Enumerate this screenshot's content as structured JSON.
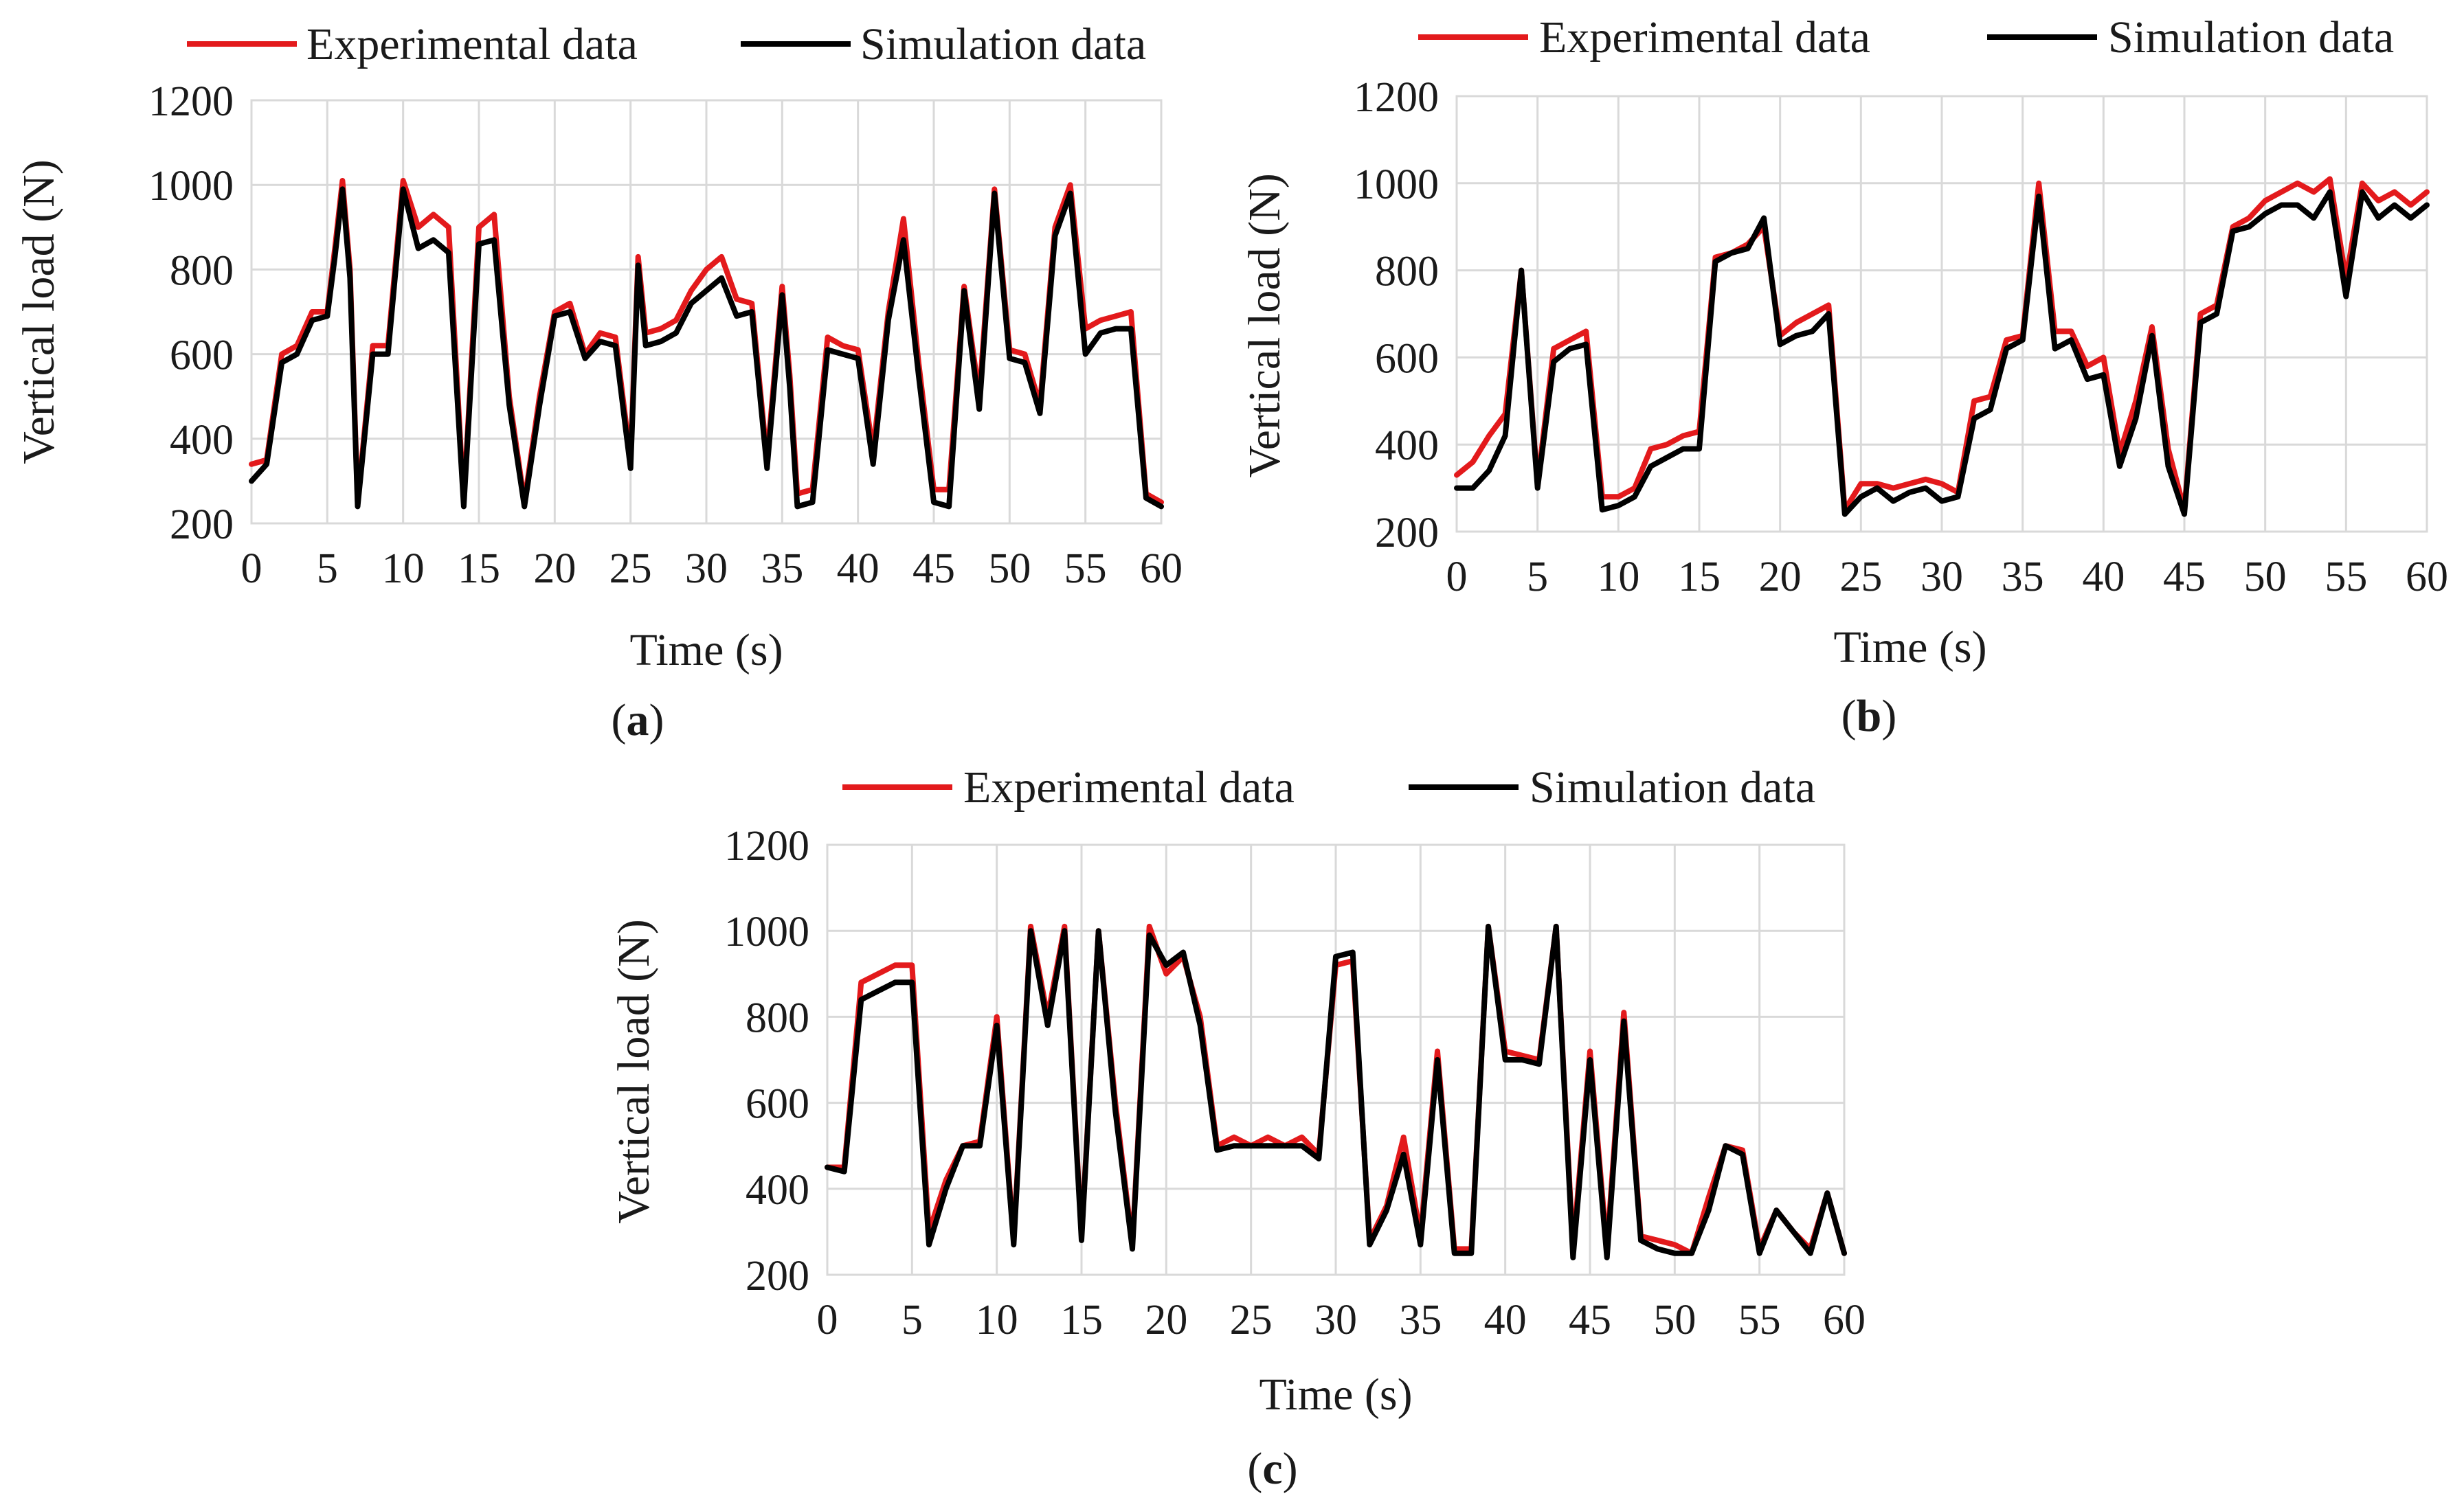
{
  "chart_data": [
    {
      "type": "line",
      "panel_label": "a",
      "xlabel": "Time (s)",
      "ylabel": "Vertical load (N)",
      "xlim": [
        0,
        60
      ],
      "ylim": [
        200,
        1200
      ],
      "xticks": [
        "0",
        "5",
        "10",
        "15",
        "20",
        "25",
        "30",
        "35",
        "40",
        "45",
        "50",
        "55",
        "60"
      ],
      "yticks": [
        "200",
        "400",
        "600",
        "800",
        "1000",
        "1200"
      ],
      "grid": true,
      "legend_position": "top",
      "series": [
        {
          "name": "Experimental data",
          "color": "#e31a1c",
          "x": [
            0,
            1,
            2,
            3,
            4,
            5,
            5.5,
            6,
            6.5,
            7,
            8,
            9,
            10,
            11,
            12,
            13,
            14,
            15,
            16,
            17,
            18,
            19,
            20,
            21,
            22,
            23,
            24,
            25,
            25.5,
            26,
            27,
            28,
            29,
            30,
            31,
            32,
            33,
            34,
            35,
            35.5,
            36,
            37,
            38,
            39,
            40,
            41,
            42,
            43,
            44,
            45,
            46,
            47,
            48,
            49,
            50,
            51,
            52,
            53,
            54,
            55,
            56,
            57,
            58,
            59,
            60
          ],
          "y": [
            340,
            350,
            600,
            620,
            700,
            700,
            850,
            1010,
            800,
            250,
            620,
            620,
            1010,
            900,
            930,
            900,
            250,
            900,
            930,
            500,
            250,
            500,
            700,
            720,
            600,
            650,
            640,
            350,
            830,
            650,
            660,
            680,
            750,
            800,
            830,
            730,
            720,
            350,
            760,
            550,
            270,
            280,
            640,
            620,
            610,
            370,
            700,
            920,
            580,
            280,
            280,
            760,
            500,
            990,
            610,
            600,
            480,
            900,
            1000,
            660,
            680,
            690,
            700,
            270,
            250
          ]
        },
        {
          "name": "Simulation data",
          "color": "#000000",
          "x": [
            0,
            1,
            2,
            3,
            4,
            5,
            5.5,
            6,
            6.5,
            7,
            8,
            9,
            10,
            11,
            12,
            13,
            14,
            15,
            16,
            17,
            18,
            19,
            20,
            21,
            22,
            23,
            24,
            25,
            25.5,
            26,
            27,
            28,
            29,
            30,
            31,
            32,
            33,
            34,
            35,
            35.5,
            36,
            37,
            38,
            39,
            40,
            41,
            42,
            43,
            44,
            45,
            46,
            47,
            48,
            49,
            50,
            51,
            52,
            53,
            54,
            55,
            56,
            57,
            58,
            59,
            60
          ],
          "y": [
            300,
            340,
            580,
            600,
            680,
            690,
            830,
            990,
            780,
            240,
            600,
            600,
            990,
            850,
            870,
            840,
            240,
            860,
            870,
            480,
            240,
            480,
            690,
            700,
            590,
            630,
            620,
            330,
            810,
            620,
            630,
            650,
            720,
            750,
            780,
            690,
            700,
            330,
            740,
            520,
            240,
            250,
            610,
            600,
            590,
            340,
            680,
            870,
            550,
            250,
            240,
            750,
            470,
            980,
            590,
            580,
            460,
            880,
            980,
            600,
            650,
            660,
            660,
            260,
            240
          ]
        }
      ]
    },
    {
      "type": "line",
      "panel_label": "b",
      "xlabel": "Time (s)",
      "ylabel": "Vertical load (N)",
      "xlim": [
        0,
        60
      ],
      "ylim": [
        200,
        1200
      ],
      "xticks": [
        "0",
        "5",
        "10",
        "15",
        "20",
        "25",
        "30",
        "35",
        "40",
        "45",
        "50",
        "55",
        "60"
      ],
      "yticks": [
        "200",
        "400",
        "600",
        "800",
        "1000",
        "1200"
      ],
      "grid": true,
      "legend_position": "top",
      "series": [
        {
          "name": "Experimental data",
          "color": "#e31a1c",
          "x": [
            0,
            1,
            2,
            3,
            4,
            5,
            6,
            7,
            8,
            9,
            10,
            11,
            12,
            13,
            14,
            15,
            16,
            17,
            18,
            19,
            20,
            21,
            22,
            23,
            24,
            25,
            26,
            27,
            28,
            29,
            30,
            31,
            32,
            33,
            34,
            35,
            36,
            37,
            38,
            39,
            40,
            41,
            42,
            43,
            44,
            45,
            46,
            47,
            48,
            49,
            50,
            51,
            52,
            53,
            54,
            55,
            56,
            57,
            58,
            59,
            60
          ],
          "y": [
            330,
            360,
            420,
            470,
            800,
            310,
            620,
            640,
            660,
            280,
            280,
            300,
            390,
            400,
            420,
            430,
            830,
            840,
            860,
            900,
            650,
            680,
            700,
            720,
            250,
            310,
            310,
            300,
            310,
            320,
            310,
            290,
            500,
            510,
            640,
            650,
            1000,
            660,
            660,
            580,
            600,
            380,
            500,
            670,
            390,
            250,
            700,
            720,
            900,
            920,
            960,
            980,
            1000,
            980,
            1010,
            780,
            1000,
            960,
            980,
            950,
            980
          ]
        },
        {
          "name": "Simulation data",
          "color": "#000000",
          "x": [
            0,
            1,
            2,
            3,
            4,
            5,
            6,
            7,
            8,
            9,
            10,
            11,
            12,
            13,
            14,
            15,
            16,
            17,
            18,
            19,
            20,
            21,
            22,
            23,
            24,
            25,
            26,
            27,
            28,
            29,
            30,
            31,
            32,
            33,
            34,
            35,
            36,
            37,
            38,
            39,
            40,
            41,
            42,
            43,
            44,
            45,
            46,
            47,
            48,
            49,
            50,
            51,
            52,
            53,
            54,
            55,
            56,
            57,
            58,
            59,
            60
          ],
          "y": [
            300,
            300,
            340,
            420,
            800,
            300,
            590,
            620,
            630,
            250,
            260,
            280,
            350,
            370,
            390,
            390,
            820,
            840,
            850,
            920,
            630,
            650,
            660,
            700,
            240,
            280,
            300,
            270,
            290,
            300,
            270,
            280,
            460,
            480,
            620,
            640,
            970,
            620,
            640,
            550,
            560,
            350,
            460,
            650,
            350,
            240,
            680,
            700,
            890,
            900,
            930,
            950,
            950,
            920,
            980,
            740,
            980,
            920,
            950,
            920,
            950
          ]
        }
      ]
    },
    {
      "type": "line",
      "panel_label": "c",
      "xlabel": "Time (s)",
      "ylabel": "Vertical load (N)",
      "xlim": [
        0,
        60
      ],
      "ylim": [
        200,
        1200
      ],
      "xticks": [
        "0",
        "5",
        "10",
        "15",
        "20",
        "25",
        "30",
        "35",
        "40",
        "45",
        "50",
        "55",
        "60"
      ],
      "yticks": [
        "200",
        "400",
        "600",
        "800",
        "1000",
        "1200"
      ],
      "grid": true,
      "legend_position": "top",
      "series": [
        {
          "name": "Experimental data",
          "color": "#e31a1c",
          "x": [
            0,
            1,
            2,
            3,
            4,
            5,
            6,
            7,
            8,
            9,
            10,
            11,
            12,
            13,
            14,
            15,
            16,
            17,
            18,
            19,
            20,
            21,
            22,
            23,
            24,
            25,
            26,
            27,
            28,
            29,
            30,
            31,
            32,
            33,
            34,
            35,
            36,
            37,
            38,
            39,
            40,
            41,
            42,
            43,
            44,
            45,
            46,
            47,
            48,
            49,
            50,
            51,
            52,
            53,
            54,
            55,
            56,
            57,
            58,
            59,
            60
          ],
          "y": [
            450,
            450,
            880,
            900,
            920,
            920,
            300,
            420,
            500,
            510,
            800,
            280,
            1010,
            800,
            1010,
            290,
            1000,
            600,
            270,
            1010,
            900,
            940,
            800,
            500,
            520,
            500,
            520,
            500,
            520,
            480,
            920,
            930,
            280,
            360,
            520,
            290,
            720,
            260,
            260,
            1010,
            720,
            710,
            700,
            1010,
            260,
            720,
            260,
            810,
            290,
            280,
            270,
            250,
            380,
            500,
            490,
            260,
            350,
            300,
            260,
            390,
            250
          ]
        },
        {
          "name": "Simulation data",
          "color": "#000000",
          "x": [
            0,
            1,
            2,
            3,
            4,
            5,
            6,
            7,
            8,
            9,
            10,
            11,
            12,
            13,
            14,
            15,
            16,
            17,
            18,
            19,
            20,
            21,
            22,
            23,
            24,
            25,
            26,
            27,
            28,
            29,
            30,
            31,
            32,
            33,
            34,
            35,
            36,
            37,
            38,
            39,
            40,
            41,
            42,
            43,
            44,
            45,
            46,
            47,
            48,
            49,
            50,
            51,
            52,
            53,
            54,
            55,
            56,
            57,
            58,
            59,
            60
          ],
          "y": [
            450,
            440,
            840,
            860,
            880,
            880,
            270,
            400,
            500,
            500,
            780,
            270,
            1000,
            780,
            1000,
            280,
            1000,
            580,
            260,
            990,
            920,
            950,
            780,
            490,
            500,
            500,
            500,
            500,
            500,
            470,
            940,
            950,
            270,
            350,
            480,
            270,
            700,
            250,
            250,
            1010,
            700,
            700,
            690,
            1010,
            240,
            700,
            240,
            790,
            280,
            260,
            250,
            250,
            350,
            500,
            480,
            250,
            350,
            300,
            250,
            390,
            250
          ]
        }
      ]
    }
  ]
}
